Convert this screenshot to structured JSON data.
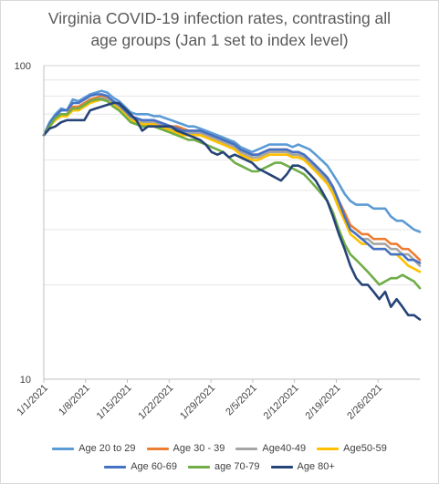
{
  "chart_data": {
    "type": "line",
    "title": "Virginia COVID-19 infection rates, contrasting all age groups (Jan 1 set to index level)",
    "title_lines": [
      "Virginia COVID-19 infection rates, contrasting all",
      "age groups (Jan 1 set to index level)"
    ],
    "y_scale": "log",
    "ylim": [
      10,
      100
    ],
    "y_ticks": [
      {
        "value": 10,
        "label": "10"
      },
      {
        "value": 100,
        "label": "100"
      }
    ],
    "x_start": "2021-01-01",
    "x_end": "2021-03-05",
    "x_ticks": [
      "1/1/2021",
      "1/8/2021",
      "1/15/2021",
      "1/22/2021",
      "1/29/2021",
      "2/5/2021",
      "2/12/2021",
      "2/19/2021",
      "2/26/2021"
    ],
    "grid": "horizontal-minor",
    "legend_position": "bottom",
    "series": [
      {
        "name": "Age 20 to 29",
        "color": "#5b9bd5",
        "values": [
          60,
          66,
          70,
          73,
          72,
          78,
          77,
          79,
          81,
          82,
          83,
          82,
          79,
          77,
          74,
          71,
          70,
          70,
          70,
          69,
          69,
          68,
          67,
          66,
          65,
          64,
          64,
          63,
          62,
          61,
          60,
          59,
          58,
          57,
          55,
          54,
          53,
          54,
          55,
          56,
          56,
          56,
          56,
          55,
          56,
          55,
          54,
          52,
          50,
          48,
          45,
          42,
          39,
          37,
          36,
          36,
          36,
          35,
          35,
          35,
          33,
          32,
          32,
          31,
          30,
          29.5
        ]
      },
      {
        "name": "Age 30 - 39",
        "color": "#ed7d31",
        "values": [
          60,
          65,
          68,
          70,
          70,
          74,
          74,
          76,
          78,
          79,
          80,
          79,
          77,
          75,
          72,
          69,
          68,
          67,
          67,
          67,
          66,
          65,
          64,
          64,
          63,
          62,
          62,
          62,
          61,
          60,
          59,
          58,
          57,
          56,
          54,
          53,
          52,
          52,
          53,
          54,
          54,
          54,
          54,
          53,
          53,
          52,
          50,
          48,
          46,
          44,
          41,
          37,
          34,
          31,
          30,
          29,
          29,
          28,
          28,
          28,
          27,
          27,
          26,
          26,
          25,
          24
        ]
      },
      {
        "name": "Age40-49",
        "color": "#a5a5a5",
        "values": [
          60,
          64,
          68,
          70,
          70,
          73,
          73,
          75,
          77,
          78,
          79,
          78,
          76,
          74,
          71,
          68,
          67,
          66,
          66,
          66,
          65,
          64,
          63,
          62,
          61,
          61,
          61,
          61,
          60,
          59,
          58,
          57,
          56,
          55,
          53,
          52,
          51,
          51,
          52,
          53,
          53,
          53,
          53,
          52,
          52,
          51,
          49,
          47,
          45,
          43,
          40,
          36,
          33,
          30,
          29,
          28,
          28,
          27,
          27,
          27,
          26,
          26,
          25,
          25,
          24,
          23
        ]
      },
      {
        "name": "Age50-59",
        "color": "#ffc000",
        "values": [
          60,
          64,
          67,
          69,
          69,
          72,
          72,
          74,
          76,
          77,
          78,
          77,
          75,
          73,
          70,
          67,
          66,
          65,
          65,
          65,
          64,
          63,
          62,
          61,
          60,
          60,
          60,
          60,
          59,
          58,
          57,
          56,
          55,
          54,
          52,
          51,
          50,
          50,
          51,
          52,
          52,
          52,
          52,
          51,
          51,
          50,
          48,
          46,
          44,
          42,
          39,
          35,
          32,
          29,
          28,
          27,
          27,
          26,
          26,
          26,
          25,
          25,
          24,
          23,
          22.5,
          22
        ]
      },
      {
        "name": "Age 60-69",
        "color": "#4472c4",
        "values": [
          60,
          65,
          69,
          72,
          72,
          76,
          76,
          78,
          80,
          81,
          81,
          80,
          77,
          75,
          72,
          69,
          68,
          67,
          67,
          67,
          66,
          65,
          64,
          63,
          62,
          62,
          62,
          62,
          61,
          60,
          59,
          58,
          57,
          56,
          54,
          53,
          52,
          52,
          53,
          54,
          54,
          54,
          54,
          53,
          53,
          52,
          50,
          48,
          46,
          44,
          41,
          37,
          33,
          30,
          29,
          28,
          27,
          26,
          26,
          26,
          25,
          25,
          25,
          24,
          24,
          23.5
        ]
      },
      {
        "name": "age 70-79",
        "color": "#70ad47",
        "values": [
          60,
          64,
          68,
          70,
          70,
          73,
          73,
          75,
          77,
          78,
          78,
          77,
          74,
          72,
          69,
          66,
          65,
          64,
          64,
          64,
          63,
          62,
          61,
          60,
          59,
          58,
          58,
          57,
          56,
          55,
          54,
          53,
          51,
          49,
          48,
          47,
          46,
          46,
          47,
          48,
          49,
          49,
          48,
          47,
          46,
          45,
          43,
          41,
          39,
          37,
          34,
          30,
          27,
          25,
          24,
          23,
          22,
          21,
          20,
          20.5,
          21,
          21,
          21.5,
          21,
          20.5,
          19.5
        ]
      },
      {
        "name": "Age 80+",
        "color": "#264478",
        "values": [
          60,
          63,
          64,
          66,
          67,
          67,
          67,
          67,
          72,
          73,
          74,
          75,
          76,
          76,
          73,
          70,
          67,
          62,
          64,
          64,
          64,
          64,
          64,
          62,
          61,
          60,
          59,
          58,
          56,
          53,
          52,
          53,
          51,
          52,
          51,
          50,
          49,
          47,
          46,
          45,
          44,
          43,
          45,
          48,
          48,
          47,
          45,
          43,
          40,
          37,
          33,
          29,
          26,
          23,
          21,
          20,
          20,
          19,
          18,
          19,
          17,
          18,
          17,
          16,
          16,
          15.5
        ]
      }
    ]
  }
}
